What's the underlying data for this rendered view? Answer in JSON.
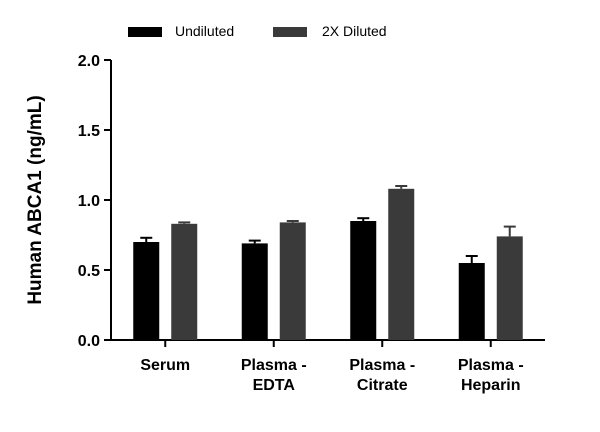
{
  "chart_data": {
    "type": "bar",
    "title": "",
    "xlabel": "",
    "ylabel": "Human ABCA1 (ng/mL)",
    "categories": [
      [
        "Serum"
      ],
      [
        "Plasma -",
        "EDTA"
      ],
      [
        "Plasma -",
        "Citrate"
      ],
      [
        "Plasma -",
        "Heparin"
      ]
    ],
    "series": [
      {
        "name": "Undiluted",
        "color": "#000000",
        "values": [
          0.7,
          0.69,
          0.85,
          0.55
        ],
        "errors": [
          0.03,
          0.02,
          0.02,
          0.05
        ]
      },
      {
        "name": "2X Diluted",
        "color": "#3a3a3a",
        "values": [
          0.83,
          0.84,
          1.08,
          0.74
        ],
        "errors": [
          0.01,
          0.01,
          0.02,
          0.07
        ]
      }
    ],
    "ylim": [
      0,
      2.0
    ],
    "yticks": [
      "0.0",
      "0.5",
      "1.0",
      "1.5",
      "2.0"
    ],
    "grid": false,
    "legend_position": "top"
  }
}
